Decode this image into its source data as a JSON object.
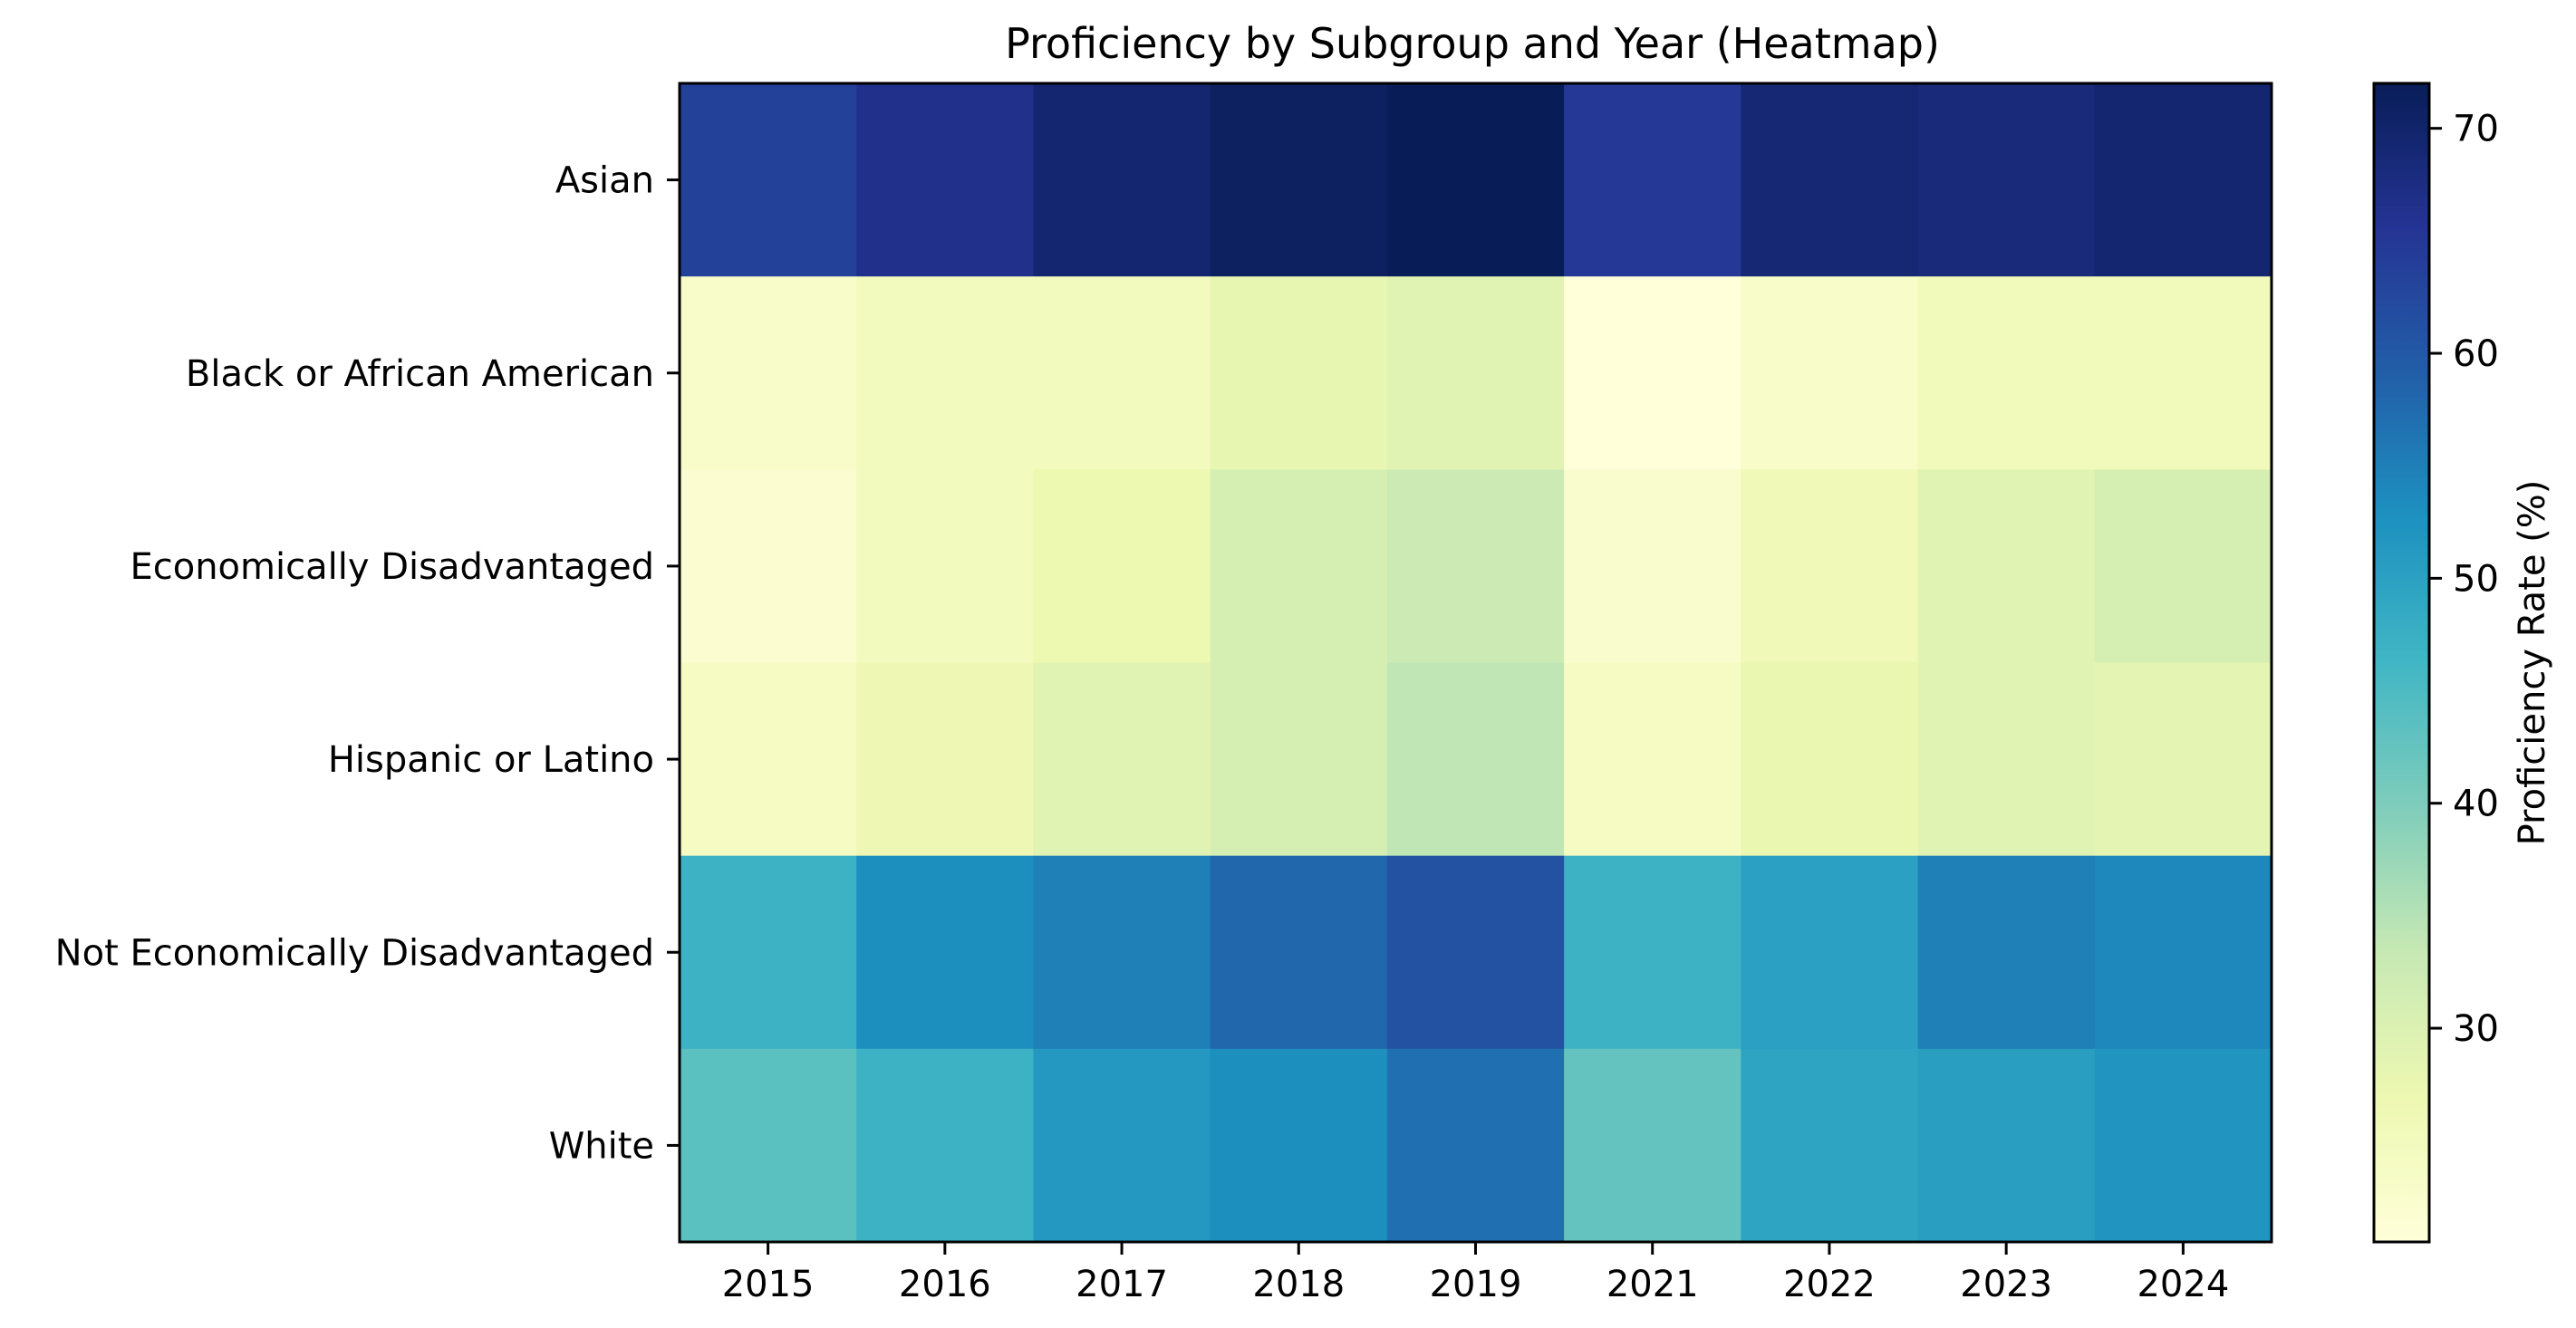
{
  "chart_data": {
    "type": "heatmap",
    "title": "Proficiency by Subgroup and Year (Heatmap)",
    "x_categories": [
      "2015",
      "2016",
      "2017",
      "2018",
      "2019",
      "2021",
      "2022",
      "2023",
      "2024"
    ],
    "y_categories": [
      "Asian",
      "Black or African American",
      "Economically Disadvantaged",
      "Hispanic or Latino",
      "Not Economically Disadvantaged",
      "White"
    ],
    "values": [
      [
        63.5,
        66.5,
        69.5,
        71.0,
        72.0,
        65.0,
        69.0,
        68.5,
        69.5
      ],
      [
        23.0,
        25.0,
        25.0,
        28.0,
        29.0,
        20.5,
        23.0,
        25.5,
        25.5
      ],
      [
        22.0,
        25.0,
        27.0,
        31.0,
        32.5,
        22.5,
        26.0,
        29.0,
        31.0
      ],
      [
        24.0,
        26.5,
        29.0,
        31.0,
        34.0,
        24.0,
        27.5,
        29.0,
        28.5
      ],
      [
        47.0,
        53.0,
        55.0,
        58.0,
        61.0,
        47.0,
        50.0,
        55.0,
        54.0
      ],
      [
        43.5,
        47.0,
        51.5,
        53.0,
        57.0,
        42.5,
        49.5,
        50.5,
        52.0
      ]
    ],
    "colormap": "YlGnBu",
    "vmin": 20.5,
    "vmax": 72.0,
    "colorbar": {
      "label": "Proficiency Rate (%)",
      "ticks": [
        30,
        40,
        50,
        60,
        70
      ]
    },
    "xlabel": "",
    "ylabel": "",
    "grid": false,
    "legend": "none"
  }
}
